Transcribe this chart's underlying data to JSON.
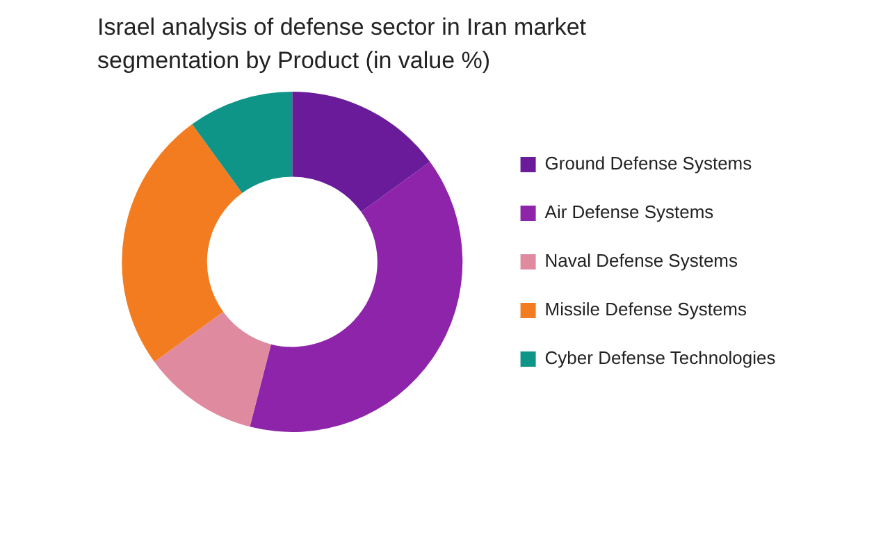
{
  "chart_data": {
    "type": "donut",
    "title": "Israel analysis of defense sector in Iran market segmentation by Product (in value %)",
    "categories": [
      "Ground Defense Systems",
      "Air Defense Systems",
      "Naval Defense Systems",
      "Missile Defense Systems",
      "Cyber Defense Technologies"
    ],
    "values": [
      15,
      39,
      11,
      25,
      10
    ],
    "colors": [
      "#6a1b9a",
      "#8e24aa",
      "#e08aa0",
      "#f47c20",
      "#0f9488"
    ],
    "legend": "right"
  }
}
